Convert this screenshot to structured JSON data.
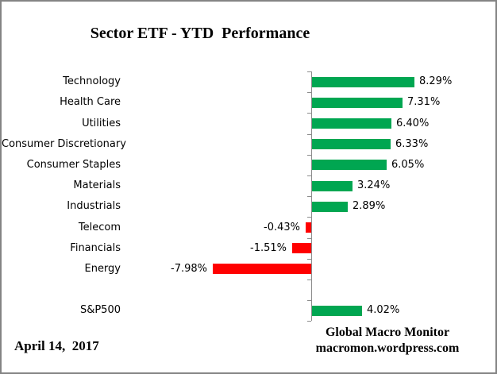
{
  "chart_data": {
    "type": "bar",
    "orientation": "horizontal",
    "title": "Sector ETF - YTD  Performance",
    "categories": [
      "Technology",
      "Health Care",
      "Utilities",
      "Consumer Discretionary",
      "Consumer Staples",
      "Materials",
      "Industrials",
      "Telecom",
      "Financials",
      "Energy",
      "S&P500"
    ],
    "values": [
      8.29,
      7.31,
      6.4,
      6.33,
      6.05,
      3.24,
      2.89,
      -0.43,
      -1.51,
      -7.98,
      4.02
    ],
    "value_labels": [
      "8.29%",
      "7.31%",
      "6.40%",
      "6.33%",
      "6.05%",
      "3.24%",
      "2.89%",
      "-0.43%",
      "-1.51%",
      "-7.98%",
      "4.02%"
    ],
    "separator_after_index": 9,
    "xlim": [
      -9,
      10
    ],
    "grid": false,
    "legend": false,
    "xlabel": "",
    "ylabel": "",
    "positive_color": "#00A651",
    "negative_color": "#FF0000",
    "axis_color": "#8C8C8C"
  },
  "footer": {
    "date": "April 14,  2017",
    "source_line1": "Global Macro Monitor",
    "source_line2": "macromon.wordpress.com"
  }
}
